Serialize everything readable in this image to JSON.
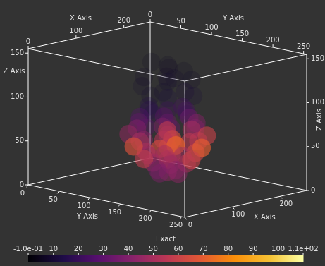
{
  "chart_data": {
    "type": "volume",
    "x_label": "X Axis",
    "y_label": "Y Axis",
    "z_label": "Z Axis",
    "xlim": [
      0,
      255
    ],
    "xticks": [
      0,
      100,
      200
    ],
    "ylim": [
      0,
      255
    ],
    "yticks": [
      0,
      50,
      100,
      150,
      200,
      250
    ],
    "zlim": [
      0,
      155
    ],
    "zticks": [
      0,
      50,
      100,
      150
    ],
    "colorbar": {
      "label": "Exact",
      "range": [
        -0.1,
        110
      ],
      "ticks": [
        {
          "value": -0.1,
          "label": "-1.0e-01"
        },
        10,
        20,
        30,
        40,
        50,
        60,
        70,
        80,
        90,
        100,
        {
          "value": 110,
          "label": "1.1e+02"
        }
      ]
    },
    "points": [
      {
        "x": 128,
        "y": 128,
        "z": 145,
        "value": 6
      },
      {
        "x": 128,
        "y": 100,
        "z": 145,
        "value": 6
      },
      {
        "x": 128,
        "y": 156,
        "z": 142,
        "value": 6
      },
      {
        "x": 146,
        "y": 116,
        "z": 138,
        "value": 7
      },
      {
        "x": 110,
        "y": 140,
        "z": 135,
        "value": 7
      },
      {
        "x": 105,
        "y": 105,
        "z": 130,
        "value": 8
      },
      {
        "x": 151,
        "y": 151,
        "z": 128,
        "value": 8
      },
      {
        "x": 128,
        "y": 128,
        "z": 125,
        "value": 10
      },
      {
        "x": 166,
        "y": 110,
        "z": 122,
        "value": 9
      },
      {
        "x": 90,
        "y": 150,
        "z": 120,
        "value": 8
      },
      {
        "x": 120,
        "y": 90,
        "z": 115,
        "value": 9
      },
      {
        "x": 136,
        "y": 166,
        "z": 112,
        "value": 11
      },
      {
        "x": 100,
        "y": 120,
        "z": 110,
        "value": 10
      },
      {
        "x": 156,
        "y": 136,
        "z": 110,
        "value": 12
      },
      {
        "x": 128,
        "y": 128,
        "z": 105,
        "value": 14
      },
      {
        "x": 128,
        "y": 128,
        "z": 90,
        "value": 22
      },
      {
        "x": 95,
        "y": 128,
        "z": 90,
        "value": 18
      },
      {
        "x": 161,
        "y": 128,
        "z": 90,
        "value": 24
      },
      {
        "x": 128,
        "y": 95,
        "z": 90,
        "value": 16
      },
      {
        "x": 128,
        "y": 161,
        "z": 90,
        "value": 20
      },
      {
        "x": 110,
        "y": 110,
        "z": 90,
        "value": 18
      },
      {
        "x": 146,
        "y": 146,
        "z": 90,
        "value": 25
      },
      {
        "x": 128,
        "y": 128,
        "z": 75,
        "value": 35
      },
      {
        "x": 80,
        "y": 128,
        "z": 75,
        "value": 30
      },
      {
        "x": 176,
        "y": 128,
        "z": 75,
        "value": 36
      },
      {
        "x": 128,
        "y": 80,
        "z": 75,
        "value": 28
      },
      {
        "x": 128,
        "y": 176,
        "z": 75,
        "value": 40
      },
      {
        "x": 100,
        "y": 100,
        "z": 75,
        "value": 32
      },
      {
        "x": 156,
        "y": 156,
        "z": 75,
        "value": 42
      },
      {
        "x": 100,
        "y": 156,
        "z": 75,
        "value": 34
      },
      {
        "x": 156,
        "y": 100,
        "z": 75,
        "value": 30
      },
      {
        "x": 128,
        "y": 128,
        "z": 60,
        "value": 48
      },
      {
        "x": 75,
        "y": 128,
        "z": 60,
        "value": 44
      },
      {
        "x": 181,
        "y": 128,
        "z": 60,
        "value": 50
      },
      {
        "x": 128,
        "y": 75,
        "z": 60,
        "value": 42
      },
      {
        "x": 128,
        "y": 181,
        "z": 60,
        "value": 55
      },
      {
        "x": 90,
        "y": 90,
        "z": 60,
        "value": 46
      },
      {
        "x": 166,
        "y": 166,
        "z": 60,
        "value": 60
      },
      {
        "x": 90,
        "y": 166,
        "z": 60,
        "value": 52
      },
      {
        "x": 166,
        "y": 90,
        "z": 60,
        "value": 40
      },
      {
        "x": 110,
        "y": 150,
        "z": 60,
        "value": 65
      },
      {
        "x": 150,
        "y": 110,
        "z": 60,
        "value": 58
      },
      {
        "x": 128,
        "y": 128,
        "z": 45,
        "value": 60
      },
      {
        "x": 80,
        "y": 128,
        "z": 45,
        "value": 52
      },
      {
        "x": 176,
        "y": 128,
        "z": 45,
        "value": 56
      },
      {
        "x": 128,
        "y": 80,
        "z": 45,
        "value": 50
      },
      {
        "x": 128,
        "y": 176,
        "z": 45,
        "value": 62
      },
      {
        "x": 95,
        "y": 95,
        "z": 45,
        "value": 66
      },
      {
        "x": 161,
        "y": 161,
        "z": 45,
        "value": 70
      },
      {
        "x": 95,
        "y": 161,
        "z": 45,
        "value": 58
      },
      {
        "x": 161,
        "y": 95,
        "z": 45,
        "value": 54
      },
      {
        "x": 110,
        "y": 128,
        "z": 45,
        "value": 64
      },
      {
        "x": 146,
        "y": 128,
        "z": 45,
        "value": 72
      },
      {
        "x": 128,
        "y": 128,
        "z": 30,
        "value": 55
      },
      {
        "x": 95,
        "y": 128,
        "z": 30,
        "value": 48
      },
      {
        "x": 161,
        "y": 128,
        "z": 30,
        "value": 50
      },
      {
        "x": 128,
        "y": 95,
        "z": 30,
        "value": 46
      },
      {
        "x": 128,
        "y": 161,
        "z": 30,
        "value": 52
      },
      {
        "x": 105,
        "y": 105,
        "z": 30,
        "value": 58
      },
      {
        "x": 151,
        "y": 151,
        "z": 30,
        "value": 60
      },
      {
        "x": 105,
        "y": 151,
        "z": 30,
        "value": 47
      },
      {
        "x": 151,
        "y": 105,
        "z": 30,
        "value": 49
      },
      {
        "x": 128,
        "y": 128,
        "z": 15,
        "value": 45
      },
      {
        "x": 110,
        "y": 128,
        "z": 15,
        "value": 40
      },
      {
        "x": 146,
        "y": 128,
        "z": 15,
        "value": 42
      },
      {
        "x": 128,
        "y": 110,
        "z": 15,
        "value": 38
      },
      {
        "x": 128,
        "y": 146,
        "z": 15,
        "value": 44
      }
    ]
  }
}
